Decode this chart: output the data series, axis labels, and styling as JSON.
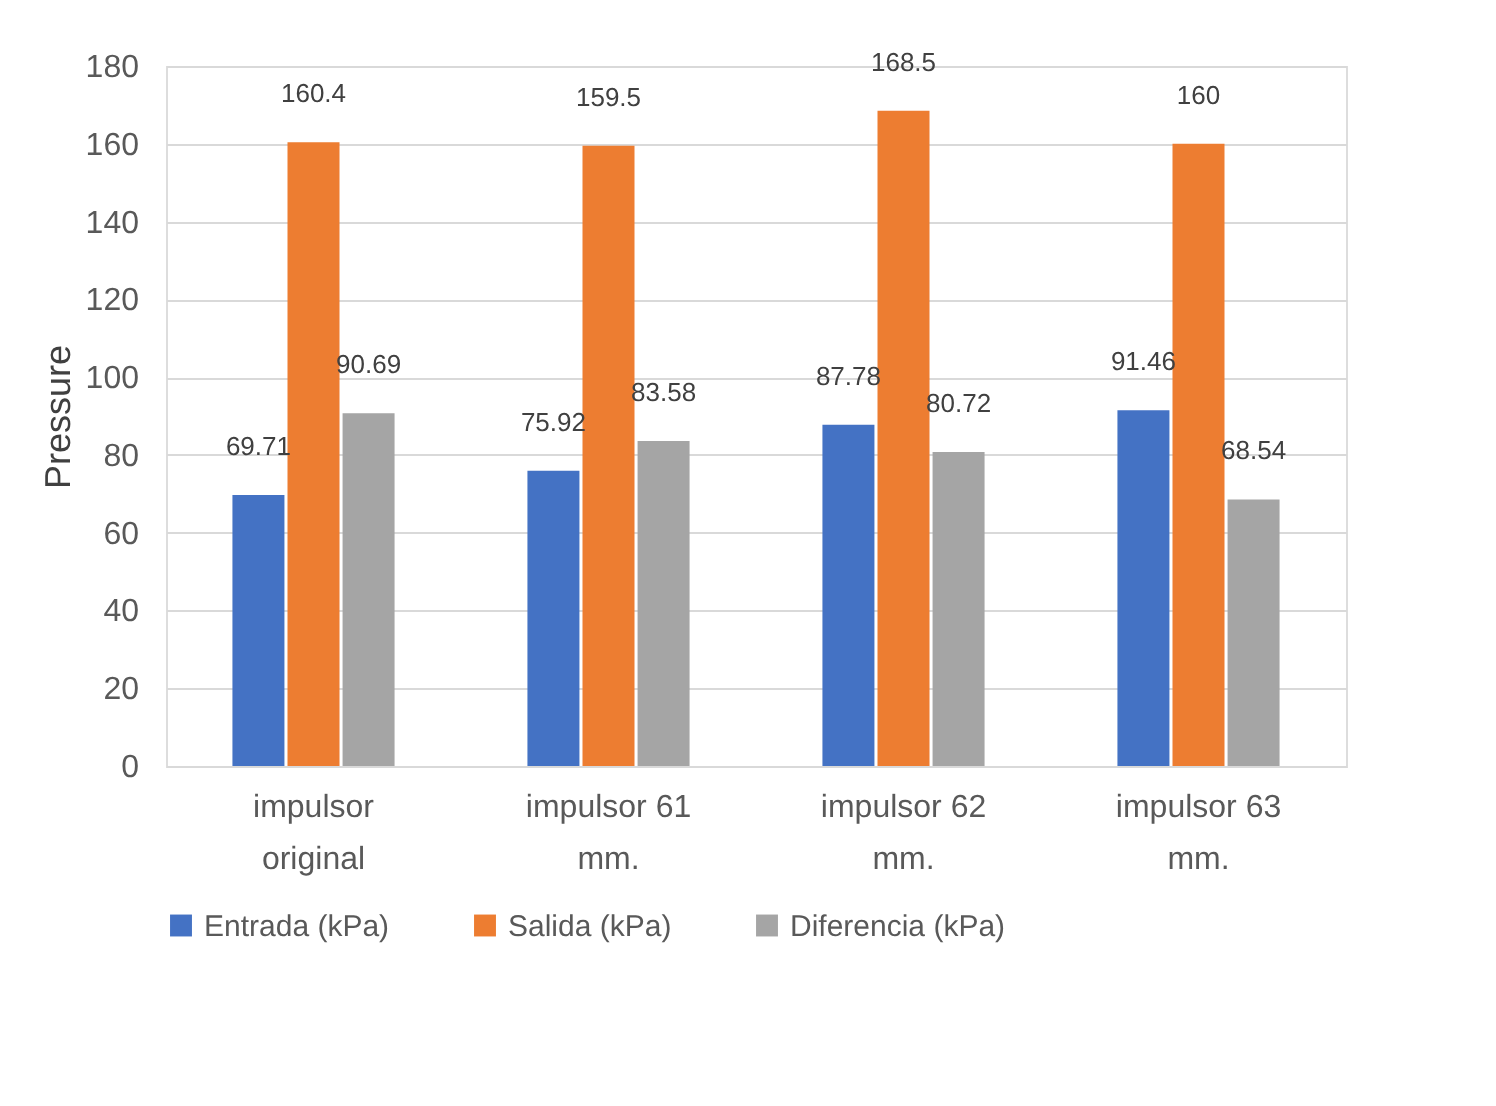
{
  "chart_data": {
    "type": "bar",
    "ylabel": "Pressure",
    "categories": [
      "impulsor original",
      "impulsor 61 mm.",
      "impulsor 62 mm.",
      "impulsor 63 mm."
    ],
    "series": [
      {
        "name": "Entrada (kPa)",
        "color": "#4472c4",
        "values": [
          69.71,
          75.92,
          87.78,
          91.46
        ]
      },
      {
        "name": "Salida (kPa)",
        "color": "#ed7d31",
        "values": [
          160.4,
          159.5,
          168.5,
          160
        ]
      },
      {
        "name": "Diferencia (kPa)",
        "color": "#a5a5a5",
        "values": [
          90.69,
          83.58,
          80.72,
          68.54
        ]
      }
    ],
    "ylim": [
      0,
      180
    ],
    "yticks": [
      0,
      20,
      40,
      60,
      80,
      100,
      120,
      140,
      160,
      180
    ],
    "grid": "y",
    "legend": "bottom",
    "data_labels": true
  }
}
